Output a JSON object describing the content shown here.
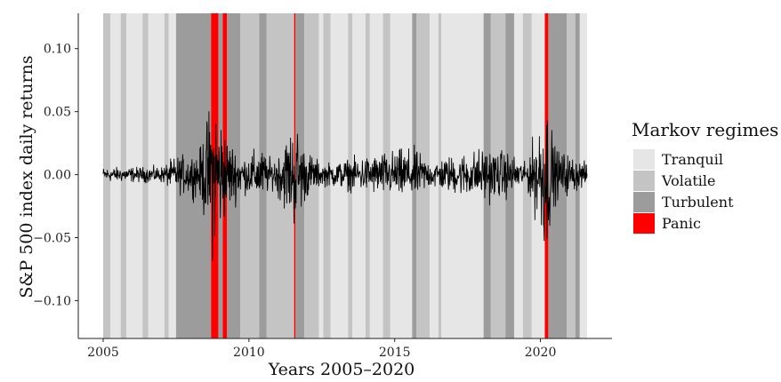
{
  "chart_data": {
    "type": "line",
    "title": "",
    "xlabel": "Years 2005–2020",
    "ylabel": "S&P 500 index daily returns",
    "xlim": [
      2005.0,
      2021.6
    ],
    "ylim": [
      -0.13,
      0.128
    ],
    "x_ticks": [
      2005,
      2010,
      2015,
      2020
    ],
    "y_ticks": [
      -0.1,
      -0.05,
      0.0,
      0.05,
      0.1
    ],
    "x_tick_labels": [
      "2005",
      "2010",
      "2015",
      "2020"
    ],
    "y_tick_labels": [
      "−0.10",
      "−0.05",
      "0.00",
      "0.05",
      "0.10"
    ],
    "grid": false,
    "legend": {
      "title": "Markov regimes",
      "position": "right",
      "entries": [
        {
          "label": "Tranquil",
          "color": "#e6e6e6"
        },
        {
          "label": "Volatile",
          "color": "#c4c4c4"
        },
        {
          "label": "Turbulent",
          "color": "#9c9c9c"
        },
        {
          "label": "Panic",
          "color": "#ff0000"
        }
      ]
    },
    "regime_colors": {
      "Tranquil": "#e6e6e6",
      "Volatile": "#c4c4c4",
      "Turbulent": "#9c9c9c",
      "Panic": "#ff0000"
    },
    "series_color": "#000000",
    "regime_periods": [
      {
        "start": 2005.0,
        "end": 2005.25,
        "regime": "Volatile"
      },
      {
        "start": 2005.25,
        "end": 2005.6,
        "regime": "Tranquil"
      },
      {
        "start": 2005.6,
        "end": 2005.8,
        "regime": "Volatile"
      },
      {
        "start": 2005.8,
        "end": 2006.35,
        "regime": "Tranquil"
      },
      {
        "start": 2006.35,
        "end": 2006.55,
        "regime": "Volatile"
      },
      {
        "start": 2006.55,
        "end": 2007.1,
        "regime": "Tranquil"
      },
      {
        "start": 2007.1,
        "end": 2007.25,
        "regime": "Volatile"
      },
      {
        "start": 2007.25,
        "end": 2007.5,
        "regime": "Tranquil"
      },
      {
        "start": 2007.5,
        "end": 2008.7,
        "regime": "Turbulent"
      },
      {
        "start": 2008.7,
        "end": 2008.95,
        "regime": "Panic"
      },
      {
        "start": 2008.95,
        "end": 2009.1,
        "regime": "Turbulent"
      },
      {
        "start": 2009.1,
        "end": 2009.25,
        "regime": "Panic"
      },
      {
        "start": 2009.25,
        "end": 2009.7,
        "regime": "Turbulent"
      },
      {
        "start": 2009.7,
        "end": 2010.35,
        "regime": "Volatile"
      },
      {
        "start": 2010.35,
        "end": 2010.6,
        "regime": "Turbulent"
      },
      {
        "start": 2010.6,
        "end": 2011.55,
        "regime": "Volatile"
      },
      {
        "start": 2011.55,
        "end": 2011.6,
        "regime": "Panic"
      },
      {
        "start": 2011.6,
        "end": 2011.9,
        "regime": "Turbulent"
      },
      {
        "start": 2011.9,
        "end": 2012.4,
        "regime": "Volatile"
      },
      {
        "start": 2012.4,
        "end": 2012.55,
        "regime": "Tranquil"
      },
      {
        "start": 2012.55,
        "end": 2012.8,
        "regime": "Volatile"
      },
      {
        "start": 2012.8,
        "end": 2013.4,
        "regime": "Tranquil"
      },
      {
        "start": 2013.4,
        "end": 2013.55,
        "regime": "Volatile"
      },
      {
        "start": 2013.55,
        "end": 2014.0,
        "regime": "Tranquil"
      },
      {
        "start": 2014.0,
        "end": 2014.15,
        "regime": "Volatile"
      },
      {
        "start": 2014.15,
        "end": 2014.6,
        "regime": "Tranquil"
      },
      {
        "start": 2014.6,
        "end": 2014.85,
        "regime": "Volatile"
      },
      {
        "start": 2014.85,
        "end": 2015.6,
        "regime": "Tranquil"
      },
      {
        "start": 2015.6,
        "end": 2015.75,
        "regime": "Turbulent"
      },
      {
        "start": 2015.75,
        "end": 2016.2,
        "regime": "Volatile"
      },
      {
        "start": 2016.2,
        "end": 2016.5,
        "regime": "Tranquil"
      },
      {
        "start": 2016.5,
        "end": 2016.6,
        "regime": "Volatile"
      },
      {
        "start": 2016.6,
        "end": 2018.05,
        "regime": "Tranquil"
      },
      {
        "start": 2018.05,
        "end": 2018.3,
        "regime": "Turbulent"
      },
      {
        "start": 2018.3,
        "end": 2018.8,
        "regime": "Volatile"
      },
      {
        "start": 2018.8,
        "end": 2019.1,
        "regime": "Turbulent"
      },
      {
        "start": 2019.1,
        "end": 2019.4,
        "regime": "Tranquil"
      },
      {
        "start": 2019.4,
        "end": 2019.7,
        "regime": "Volatile"
      },
      {
        "start": 2019.7,
        "end": 2020.15,
        "regime": "Tranquil"
      },
      {
        "start": 2020.15,
        "end": 2020.27,
        "regime": "Panic"
      },
      {
        "start": 2020.27,
        "end": 2020.9,
        "regime": "Turbulent"
      },
      {
        "start": 2020.9,
        "end": 2021.2,
        "regime": "Volatile"
      },
      {
        "start": 2021.2,
        "end": 2021.35,
        "regime": "Turbulent"
      },
      {
        "start": 2021.35,
        "end": 2021.6,
        "regime": "Tranquil"
      }
    ],
    "volatility_profile": [
      {
        "x": 2005.0,
        "amp": 0.008
      },
      {
        "x": 2007.0,
        "amp": 0.009
      },
      {
        "x": 2007.5,
        "amp": 0.02
      },
      {
        "x": 2008.3,
        "amp": 0.025
      },
      {
        "x": 2008.75,
        "amp": 0.09
      },
      {
        "x": 2009.0,
        "amp": 0.07
      },
      {
        "x": 2009.3,
        "amp": 0.04
      },
      {
        "x": 2009.8,
        "amp": 0.02
      },
      {
        "x": 2010.4,
        "amp": 0.03
      },
      {
        "x": 2010.8,
        "amp": 0.015
      },
      {
        "x": 2011.6,
        "amp": 0.06
      },
      {
        "x": 2011.9,
        "amp": 0.03
      },
      {
        "x": 2012.5,
        "amp": 0.012
      },
      {
        "x": 2015.6,
        "amp": 0.03
      },
      {
        "x": 2016.2,
        "amp": 0.015
      },
      {
        "x": 2018.1,
        "amp": 0.03
      },
      {
        "x": 2018.9,
        "amp": 0.025
      },
      {
        "x": 2019.5,
        "amp": 0.012
      },
      {
        "x": 2020.2,
        "amp": 0.09
      },
      {
        "x": 2020.5,
        "amp": 0.03
      },
      {
        "x": 2021.6,
        "amp": 0.012
      }
    ]
  }
}
